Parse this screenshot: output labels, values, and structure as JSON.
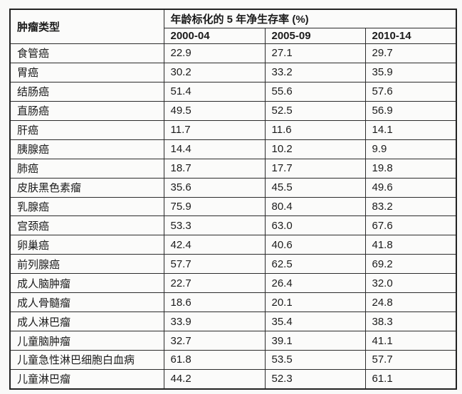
{
  "colors": {
    "border": "#2b2b2b",
    "text": "#1b1b1b",
    "background": "#f9f9f8",
    "cell_background": "#fbfbfa"
  },
  "chart_data": {
    "type": "table",
    "corner_header": "肿瘤类型",
    "group_header": "年龄标化的 5 年净生存率 (%)",
    "period_headers": [
      "2000-04",
      "2005-09",
      "2010-14"
    ],
    "rows": [
      {
        "label": "食管癌",
        "values": [
          "22.9",
          "27.1",
          "29.7"
        ]
      },
      {
        "label": "胃癌",
        "values": [
          "30.2",
          "33.2",
          "35.9"
        ]
      },
      {
        "label": "结肠癌",
        "values": [
          "51.4",
          "55.6",
          "57.6"
        ]
      },
      {
        "label": "直肠癌",
        "values": [
          "49.5",
          "52.5",
          "56.9"
        ]
      },
      {
        "label": "肝癌",
        "values": [
          "11.7",
          "11.6",
          "14.1"
        ]
      },
      {
        "label": "胰腺癌",
        "values": [
          "14.4",
          "10.2",
          "9.9"
        ]
      },
      {
        "label": "肺癌",
        "values": [
          "18.7",
          "17.7",
          "19.8"
        ]
      },
      {
        "label": "皮肤黑色素瘤",
        "values": [
          "35.6",
          "45.5",
          "49.6"
        ]
      },
      {
        "label": "乳腺癌",
        "values": [
          "75.9",
          "80.4",
          "83.2"
        ]
      },
      {
        "label": "宫颈癌",
        "values": [
          "53.3",
          "63.0",
          "67.6"
        ]
      },
      {
        "label": "卵巢癌",
        "values": [
          "42.4",
          "40.6",
          "41.8"
        ]
      },
      {
        "label": "前列腺癌",
        "values": [
          "57.7",
          "62.5",
          "69.2"
        ]
      },
      {
        "label": "成人脑肿瘤",
        "values": [
          "22.7",
          "26.4",
          "32.0"
        ]
      },
      {
        "label": "成人骨髓瘤",
        "values": [
          "18.6",
          "20.1",
          "24.8"
        ]
      },
      {
        "label": "成人淋巴瘤",
        "values": [
          "33.9",
          "35.4",
          "38.3"
        ]
      },
      {
        "label": "儿童脑肿瘤",
        "values": [
          "32.7",
          "39.1",
          "41.1"
        ]
      },
      {
        "label": "儿童急性淋巴细胞白血病",
        "values": [
          "61.8",
          "53.5",
          "57.7"
        ]
      },
      {
        "label": "儿童淋巴瘤",
        "values": [
          "44.2",
          "52.3",
          "61.1"
        ]
      }
    ]
  }
}
